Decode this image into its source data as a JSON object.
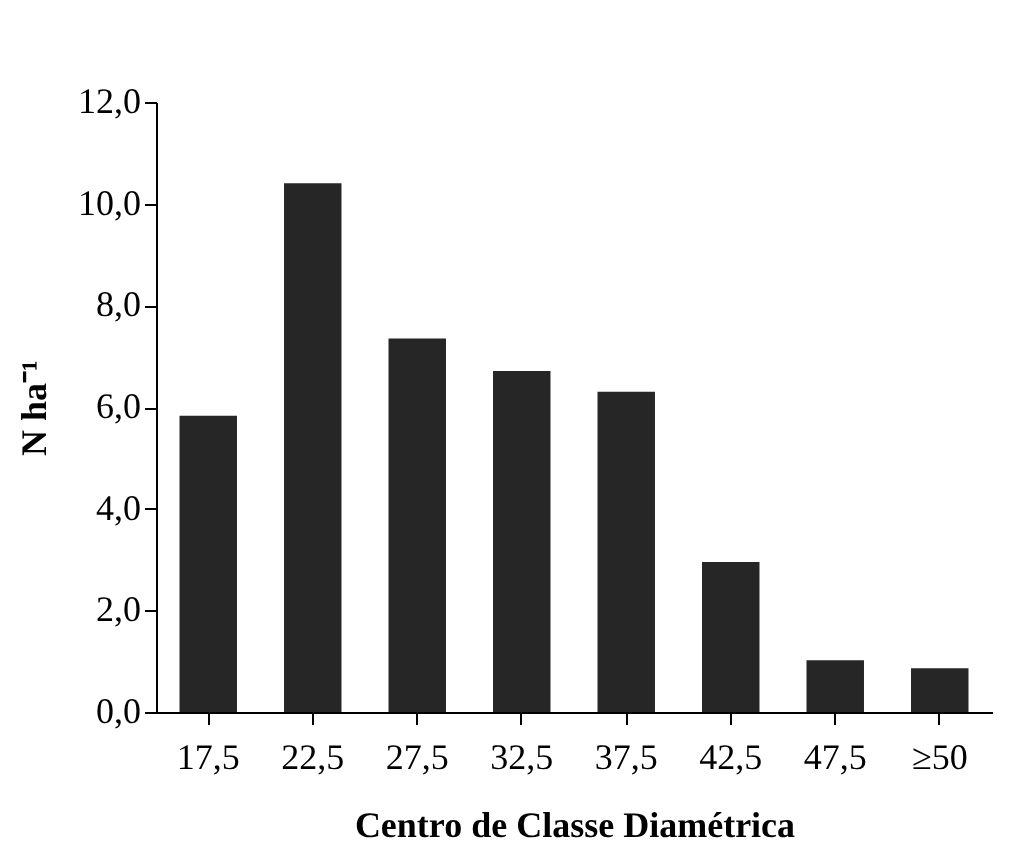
{
  "chart_data": {
    "type": "bar",
    "xlabel": "Centro de Classe Diamétrica",
    "ylabel": "N ha⁻¹",
    "categories": [
      "17,5",
      "22,5",
      "27,5",
      "32,5",
      "37,5",
      "42,5",
      "47,5",
      "≥50"
    ],
    "values": [
      5.83,
      10.4,
      7.35,
      6.71,
      6.3,
      2.95,
      1.02,
      0.86
    ],
    "color": "#262626",
    "ylim": [
      0,
      12
    ],
    "yticks": [
      {
        "value": 0,
        "label": "0,0"
      },
      {
        "value": 2,
        "label": "2,0"
      },
      {
        "value": 4,
        "label": "4,0"
      },
      {
        "value": 6,
        "label": "6,0"
      },
      {
        "value": 8,
        "label": "8,0"
      },
      {
        "value": 10,
        "label": "10,0"
      },
      {
        "value": 12,
        "label": "12,0"
      }
    ],
    "grid": false
  }
}
